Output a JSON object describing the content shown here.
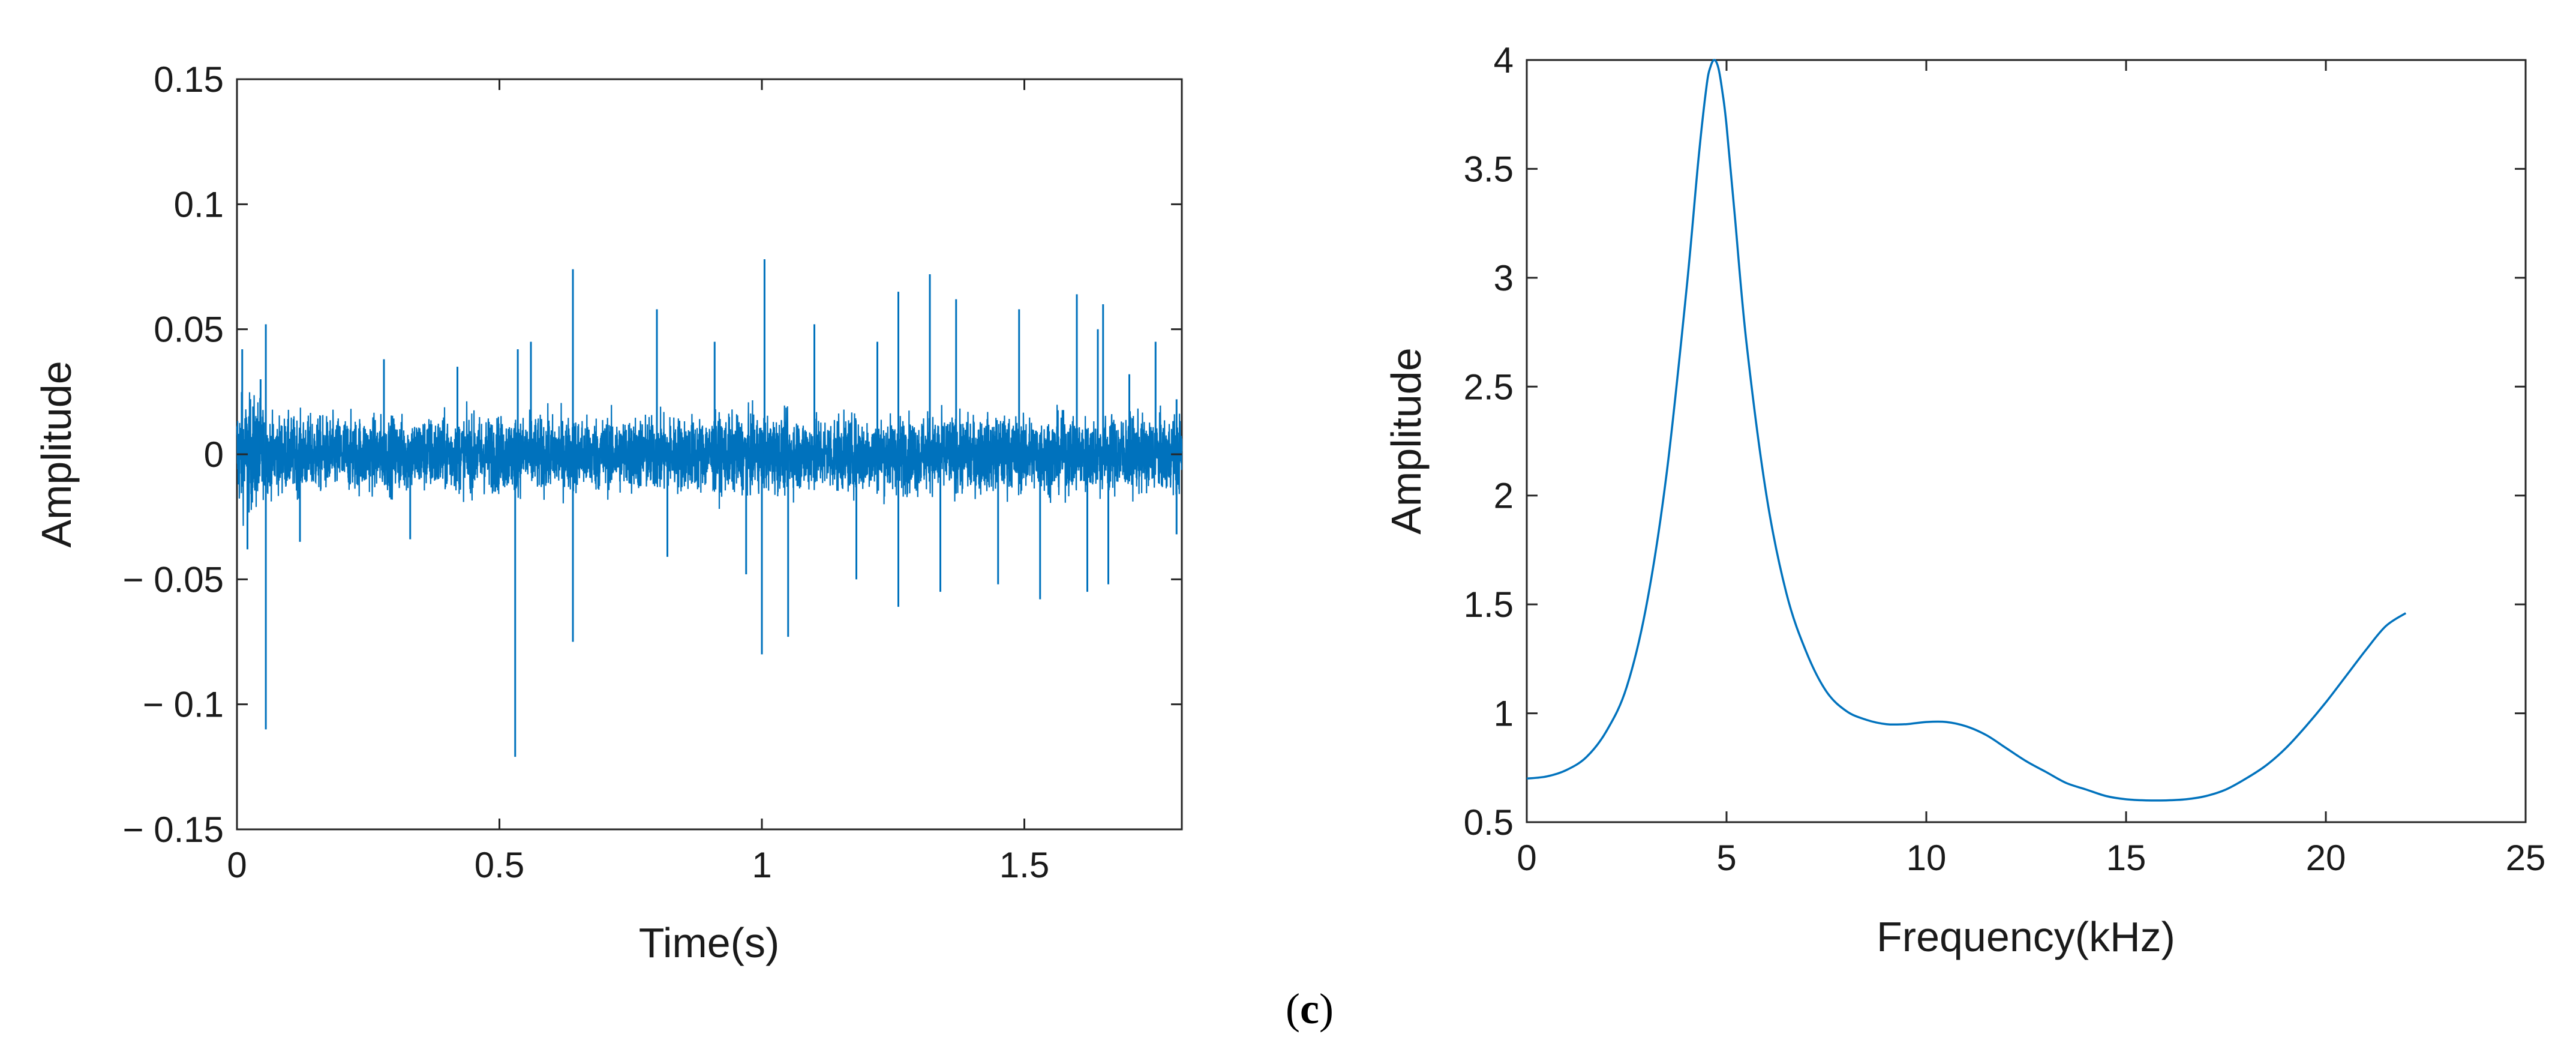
{
  "panel_label": {
    "open": "(",
    "letter": "c",
    "close": ")"
  },
  "colors": {
    "series": "#0072BD",
    "axes": "#262626",
    "text": "#1a1a1a"
  },
  "chart_data": [
    {
      "type": "line",
      "name": "time-domain-signal",
      "title": "",
      "xlabel": "Time(s)",
      "ylabel": "Amplitude",
      "xlim": [
        0,
        1.8
      ],
      "ylim": [
        -0.15,
        0.15
      ],
      "xticks": [
        0,
        0.5,
        1,
        1.5
      ],
      "xtick_labels": [
        "0",
        "0.5",
        "1",
        "1.5"
      ],
      "yticks": [
        -0.15,
        -0.1,
        -0.05,
        0,
        0.05,
        0.1,
        0.15
      ],
      "ytick_labels": [
        "− 0.15",
        "− 0.1",
        "− 0.05",
        "0",
        "0.05",
        "0.1",
        "0.15"
      ],
      "noise_envelope": 0.02,
      "spikes": [
        {
          "t": 0.01,
          "v": 0.042
        },
        {
          "t": 0.02,
          "v": -0.038
        },
        {
          "t": 0.045,
          "v": 0.03
        },
        {
          "t": 0.055,
          "v": -0.11
        },
        {
          "t": 0.055,
          "v": 0.052
        },
        {
          "t": 0.12,
          "v": -0.035
        },
        {
          "t": 0.28,
          "v": 0.038
        },
        {
          "t": 0.33,
          "v": -0.034
        },
        {
          "t": 0.42,
          "v": 0.035
        },
        {
          "t": 0.53,
          "v": -0.121
        },
        {
          "t": 0.535,
          "v": 0.042
        },
        {
          "t": 0.56,
          "v": 0.045
        },
        {
          "t": 0.64,
          "v": 0.074
        },
        {
          "t": 0.64,
          "v": -0.075
        },
        {
          "t": 0.8,
          "v": 0.058
        },
        {
          "t": 0.82,
          "v": -0.041
        },
        {
          "t": 0.91,
          "v": 0.045
        },
        {
          "t": 0.97,
          "v": -0.048
        },
        {
          "t": 1.0,
          "v": -0.08
        },
        {
          "t": 1.005,
          "v": 0.078
        },
        {
          "t": 1.05,
          "v": -0.073
        },
        {
          "t": 1.1,
          "v": 0.052
        },
        {
          "t": 1.18,
          "v": -0.05
        },
        {
          "t": 1.22,
          "v": 0.045
        },
        {
          "t": 1.26,
          "v": 0.065
        },
        {
          "t": 1.26,
          "v": -0.061
        },
        {
          "t": 1.32,
          "v": 0.072
        },
        {
          "t": 1.34,
          "v": -0.055
        },
        {
          "t": 1.37,
          "v": 0.062
        },
        {
          "t": 1.45,
          "v": -0.052
        },
        {
          "t": 1.49,
          "v": 0.058
        },
        {
          "t": 1.53,
          "v": -0.058
        },
        {
          "t": 1.6,
          "v": 0.064
        },
        {
          "t": 1.62,
          "v": -0.055
        },
        {
          "t": 1.64,
          "v": 0.05
        },
        {
          "t": 1.65,
          "v": 0.06
        },
        {
          "t": 1.66,
          "v": -0.052
        },
        {
          "t": 1.7,
          "v": 0.032
        },
        {
          "t": 1.75,
          "v": 0.045
        },
        {
          "t": 1.79,
          "v": 0.022
        },
        {
          "t": 1.79,
          "v": -0.032
        }
      ]
    },
    {
      "type": "line",
      "name": "frequency-spectrum",
      "title": "",
      "xlabel": "Frequency(kHz)",
      "ylabel": "Amplitude",
      "xlim": [
        0,
        25
      ],
      "ylim": [
        0.5,
        4
      ],
      "xticks": [
        0,
        5,
        10,
        15,
        20,
        25
      ],
      "xtick_labels": [
        "0",
        "5",
        "10",
        "15",
        "20",
        "25"
      ],
      "yticks": [
        0.5,
        1,
        1.5,
        2,
        2.5,
        3,
        3.5,
        4
      ],
      "ytick_labels": [
        "0.5",
        "1",
        "1.5",
        "2",
        "2.5",
        "3",
        "3.5",
        "4"
      ],
      "x": [
        0,
        0.5,
        1,
        1.5,
        2,
        2.5,
        3,
        3.5,
        4,
        4.3,
        4.5,
        4.6,
        4.7,
        4.8,
        4.9,
        5,
        5.2,
        5.5,
        6,
        6.5,
        7,
        7.5,
        8,
        8.5,
        9,
        9.5,
        10,
        10.5,
        11,
        11.5,
        12,
        12.5,
        13,
        13.5,
        14,
        14.5,
        15,
        15.5,
        16,
        16.5,
        17,
        17.5,
        18,
        18.5,
        19,
        19.5,
        20,
        20.5,
        21,
        21.5,
        22
      ],
      "y": [
        0.7,
        0.71,
        0.74,
        0.8,
        0.92,
        1.12,
        1.5,
        2.1,
        2.95,
        3.55,
        3.88,
        3.97,
        4.0,
        3.96,
        3.85,
        3.7,
        3.3,
        2.7,
        2.0,
        1.55,
        1.28,
        1.1,
        1.01,
        0.97,
        0.95,
        0.95,
        0.96,
        0.96,
        0.94,
        0.9,
        0.84,
        0.78,
        0.73,
        0.68,
        0.65,
        0.62,
        0.605,
        0.6,
        0.6,
        0.605,
        0.62,
        0.65,
        0.7,
        0.76,
        0.84,
        0.94,
        1.05,
        1.17,
        1.29,
        1.4,
        1.46
      ]
    }
  ]
}
